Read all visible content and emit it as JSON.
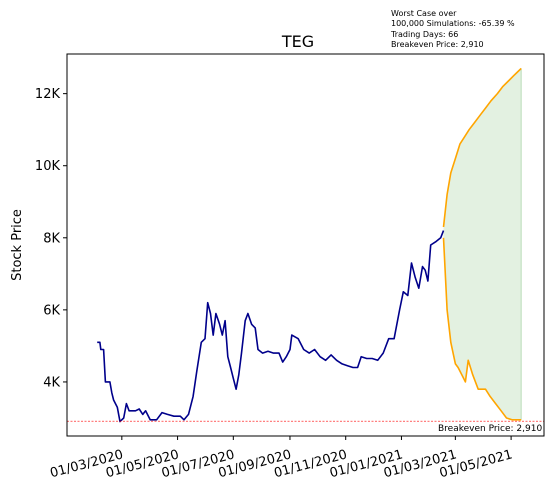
{
  "chart_data": {
    "type": "line",
    "title": "TEG",
    "xlabel": "",
    "ylabel": "Stock Price",
    "ylim": [
      2500,
      13100
    ],
    "yticks": [
      {
        "value": 4000,
        "label": "4K"
      },
      {
        "value": 6000,
        "label": "6K"
      },
      {
        "value": 8000,
        "label": "8K"
      },
      {
        "value": 10000,
        "label": "10K"
      },
      {
        "value": 12000,
        "label": "12K"
      }
    ],
    "xlim": [
      "2020-01-01",
      "2021-06-06"
    ],
    "xticks": [
      {
        "value": "2020-03-01",
        "label": "01/03/2020"
      },
      {
        "value": "2020-05-01",
        "label": "01/05/2020"
      },
      {
        "value": "2020-07-01",
        "label": "01/07/2020"
      },
      {
        "value": "2020-09-01",
        "label": "01/09/2020"
      },
      {
        "value": "2020-11-01",
        "label": "01/11/2020"
      },
      {
        "value": "2021-01-01",
        "label": "01/01/2021"
      },
      {
        "value": "2021-03-01",
        "label": "01/03/2021"
      },
      {
        "value": "2021-05-01",
        "label": "01/05/2021"
      }
    ],
    "grid": false,
    "annotation_lines": [
      "Worst Case over",
      "100,000 Simulations: -65.39 %",
      "Trading Days: 66",
      "Breakeven Price: 2,910"
    ],
    "breakeven": {
      "value": 2910,
      "label": "Breakeven Price: 2,910",
      "color": "#ff0000"
    },
    "colors": {
      "history": "#00008b",
      "simulation": "#ffa500",
      "band": "#e3f1e1",
      "band_edge": "#b9dcb8"
    },
    "series": [
      {
        "role": "history",
        "points": [
          [
            "2020-02-03",
            5100
          ],
          [
            "2020-02-06",
            5100
          ],
          [
            "2020-02-07",
            4900
          ],
          [
            "2020-02-10",
            4900
          ],
          [
            "2020-02-12",
            4000
          ],
          [
            "2020-02-17",
            4000
          ],
          [
            "2020-02-19",
            3700
          ],
          [
            "2020-02-21",
            3500
          ],
          [
            "2020-02-25",
            3300
          ],
          [
            "2020-02-28",
            2900
          ],
          [
            "2020-03-03",
            3000
          ],
          [
            "2020-03-06",
            3400
          ],
          [
            "2020-03-09",
            3200
          ],
          [
            "2020-03-16",
            3200
          ],
          [
            "2020-03-20",
            3250
          ],
          [
            "2020-03-24",
            3100
          ],
          [
            "2020-03-27",
            3200
          ],
          [
            "2020-04-01",
            2950
          ],
          [
            "2020-04-08",
            2950
          ],
          [
            "2020-04-14",
            3150
          ],
          [
            "2020-04-20",
            3100
          ],
          [
            "2020-04-27",
            3050
          ],
          [
            "2020-05-04",
            3050
          ],
          [
            "2020-05-08",
            2950
          ],
          [
            "2020-05-13",
            3100
          ],
          [
            "2020-05-18",
            3600
          ],
          [
            "2020-05-22",
            4300
          ],
          [
            "2020-05-27",
            5100
          ],
          [
            "2020-05-31",
            5200
          ],
          [
            "2020-06-03",
            6200
          ],
          [
            "2020-06-06",
            5900
          ],
          [
            "2020-06-09",
            5300
          ],
          [
            "2020-06-12",
            5900
          ],
          [
            "2020-06-16",
            5600
          ],
          [
            "2020-06-19",
            5300
          ],
          [
            "2020-06-22",
            5700
          ],
          [
            "2020-06-25",
            4700
          ],
          [
            "2020-06-28",
            4400
          ],
          [
            "2020-07-01",
            4100
          ],
          [
            "2020-07-04",
            3800
          ],
          [
            "2020-07-07",
            4200
          ],
          [
            "2020-07-10",
            4800
          ],
          [
            "2020-07-14",
            5700
          ],
          [
            "2020-07-17",
            5900
          ],
          [
            "2020-07-21",
            5600
          ],
          [
            "2020-07-25",
            5500
          ],
          [
            "2020-07-28",
            4900
          ],
          [
            "2020-08-02",
            4800
          ],
          [
            "2020-08-08",
            4850
          ],
          [
            "2020-08-14",
            4800
          ],
          [
            "2020-08-20",
            4800
          ],
          [
            "2020-08-24",
            4550
          ],
          [
            "2020-08-28",
            4700
          ],
          [
            "2020-09-01",
            4900
          ],
          [
            "2020-09-03",
            5300
          ],
          [
            "2020-09-10",
            5200
          ],
          [
            "2020-09-16",
            4900
          ],
          [
            "2020-09-22",
            4800
          ],
          [
            "2020-09-28",
            4900
          ],
          [
            "2020-10-04",
            4700
          ],
          [
            "2020-10-10",
            4600
          ],
          [
            "2020-10-16",
            4750
          ],
          [
            "2020-10-22",
            4600
          ],
          [
            "2020-10-28",
            4500
          ],
          [
            "2020-11-03",
            4450
          ],
          [
            "2020-11-09",
            4400
          ],
          [
            "2020-11-14",
            4400
          ],
          [
            "2020-11-18",
            4700
          ],
          [
            "2020-11-24",
            4650
          ],
          [
            "2020-11-30",
            4650
          ],
          [
            "2020-12-06",
            4600
          ],
          [
            "2020-12-12",
            4800
          ],
          [
            "2020-12-18",
            5200
          ],
          [
            "2020-12-24",
            5200
          ],
          [
            "2020-12-30",
            6000
          ],
          [
            "2021-01-03",
            6500
          ],
          [
            "2021-01-08",
            6400
          ],
          [
            "2021-01-12",
            7300
          ],
          [
            "2021-01-16",
            6900
          ],
          [
            "2021-01-20",
            6600
          ],
          [
            "2021-01-24",
            7200
          ],
          [
            "2021-01-27",
            7100
          ],
          [
            "2021-01-30",
            6800
          ],
          [
            "2021-02-02",
            7800
          ],
          [
            "2021-02-08",
            7900
          ],
          [
            "2021-02-13",
            8000
          ],
          [
            "2021-02-16",
            8200
          ]
        ]
      },
      {
        "role": "simulation-upper",
        "points": [
          [
            "2021-02-16",
            8300
          ],
          [
            "2021-02-20",
            9200
          ],
          [
            "2021-02-24",
            9800
          ],
          [
            "2021-03-01",
            10200
          ],
          [
            "2021-03-06",
            10600
          ],
          [
            "2021-03-11",
            10800
          ],
          [
            "2021-03-16",
            11000
          ],
          [
            "2021-03-22",
            11200
          ],
          [
            "2021-03-28",
            11400
          ],
          [
            "2021-04-03",
            11600
          ],
          [
            "2021-04-09",
            11800
          ],
          [
            "2021-04-16",
            12000
          ],
          [
            "2021-04-22",
            12200
          ],
          [
            "2021-04-28",
            12350
          ],
          [
            "2021-05-04",
            12500
          ],
          [
            "2021-05-08",
            12600
          ],
          [
            "2021-05-12",
            12700
          ]
        ]
      },
      {
        "role": "simulation-lower",
        "points": [
          [
            "2021-02-16",
            8000
          ],
          [
            "2021-02-20",
            6000
          ],
          [
            "2021-02-24",
            5100
          ],
          [
            "2021-03-01",
            4500
          ],
          [
            "2021-03-04",
            4400
          ],
          [
            "2021-03-08",
            4200
          ],
          [
            "2021-03-12",
            4000
          ],
          [
            "2021-03-15",
            4600
          ],
          [
            "2021-03-20",
            4200
          ],
          [
            "2021-03-26",
            3800
          ],
          [
            "2021-04-03",
            3800
          ],
          [
            "2021-04-08",
            3600
          ],
          [
            "2021-04-14",
            3400
          ],
          [
            "2021-04-20",
            3200
          ],
          [
            "2021-04-26",
            3000
          ],
          [
            "2021-05-02",
            2950
          ],
          [
            "2021-05-08",
            2950
          ],
          [
            "2021-05-12",
            2950
          ]
        ]
      }
    ]
  }
}
